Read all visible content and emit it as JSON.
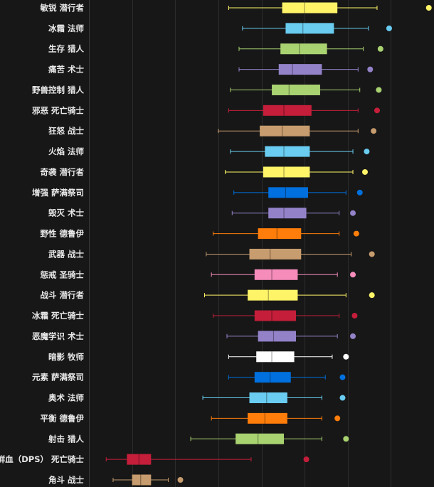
{
  "chart_data": {
    "type": "boxplot",
    "orientation": "horizontal",
    "title": "",
    "xlabel": "",
    "ylabel": "",
    "grid": true,
    "xlim": [
      0,
      100
    ],
    "rows": [
      {
        "label": "敏锐 潜行者",
        "color": "#FFF468",
        "whisker_low": 40.5,
        "q1": 56,
        "median": 62.5,
        "q3": 72,
        "whisker_high": 83.5,
        "outlier": 98.5
      },
      {
        "label": "冰霜 法师",
        "color": "#69CCF0",
        "whisker_low": 44.5,
        "q1": 57,
        "median": 62,
        "q3": 71,
        "whisker_high": 81,
        "outlier": 87
      },
      {
        "label": "生存 猎人",
        "color": "#A9D271",
        "whisker_low": 43.5,
        "q1": 55.5,
        "median": 61,
        "q3": 69,
        "whisker_high": 79.5,
        "outlier": 84.5
      },
      {
        "label": "痛苦 术士",
        "color": "#9482C9",
        "whisker_low": 43.5,
        "q1": 55,
        "median": 59,
        "q3": 67.5,
        "whisker_high": 78,
        "outlier": 81.5
      },
      {
        "label": "野兽控制 猎人",
        "color": "#A9D271",
        "whisker_low": 41,
        "q1": 53,
        "median": 58,
        "q3": 67,
        "whisker_high": 78.5,
        "outlier": 84
      },
      {
        "label": "邪恶 死亡骑士",
        "color": "#C41E3A",
        "whisker_low": 40.5,
        "q1": 50.5,
        "median": 56.5,
        "q3": 64.5,
        "whisker_high": 78,
        "outlier": 83.5
      },
      {
        "label": "狂怒 战士",
        "color": "#C79C6E",
        "whisker_low": 37.5,
        "q1": 49.5,
        "median": 56,
        "q3": 64,
        "whisker_high": 78,
        "outlier": 82.5
      },
      {
        "label": "火焰 法师",
        "color": "#69CCF0",
        "whisker_low": 41,
        "q1": 51,
        "median": 56.5,
        "q3": 64,
        "whisker_high": 76.5,
        "outlier": 80.5
      },
      {
        "label": "奇袭 潜行者",
        "color": "#FFF468",
        "whisker_low": 39.5,
        "q1": 50.5,
        "median": 56.5,
        "q3": 64,
        "whisker_high": 76.5,
        "outlier": 80
      },
      {
        "label": "增强 萨满祭司",
        "color": "#0070DE",
        "whisker_low": 42,
        "q1": 52,
        "median": 57,
        "q3": 63.5,
        "whisker_high": 74.5,
        "outlier": 78.5
      },
      {
        "label": "毁灭 术士",
        "color": "#9482C9",
        "whisker_low": 41.5,
        "q1": 52,
        "median": 56.5,
        "q3": 63,
        "whisker_high": 72.5,
        "outlier": 76.5
      },
      {
        "label": "野性 德鲁伊",
        "color": "#FF7D0A",
        "whisker_low": 36,
        "q1": 49,
        "median": 54.5,
        "q3": 61.5,
        "whisker_high": 72.5,
        "outlier": 77.5
      },
      {
        "label": "武器 战士",
        "color": "#C79C6E",
        "whisker_low": 34,
        "q1": 46.5,
        "median": 52.5,
        "q3": 61.5,
        "whisker_high": 76,
        "outlier": 82
      },
      {
        "label": "惩戒 圣骑士",
        "color": "#F58CBA",
        "whisker_low": 35.5,
        "q1": 48,
        "median": 53,
        "q3": 60.5,
        "whisker_high": 72,
        "outlier": 76.5
      },
      {
        "label": "战斗 潜行者",
        "color": "#FFF468",
        "whisker_low": 33.5,
        "q1": 46,
        "median": 52,
        "q3": 60.5,
        "whisker_high": 74.5,
        "outlier": 82
      },
      {
        "label": "冰霜 死亡骑士",
        "color": "#C41E3A",
        "whisker_low": 36,
        "q1": 48,
        "median": 53,
        "q3": 60,
        "whisker_high": 72.5,
        "outlier": 77
      },
      {
        "label": "恶魔学识 术士",
        "color": "#9482C9",
        "whisker_low": 40,
        "q1": 49,
        "median": 53.5,
        "q3": 60,
        "whisker_high": 72,
        "outlier": 76.5
      },
      {
        "label": "暗影 牧师",
        "color": "#FFFFFF",
        "whisker_low": 40.5,
        "q1": 48.5,
        "median": 53,
        "q3": 59.5,
        "whisker_high": 70.5,
        "outlier": 74.5
      },
      {
        "label": "元素 萨满祭司",
        "color": "#0070DE",
        "whisker_low": 40.5,
        "q1": 48,
        "median": 52.5,
        "q3": 58.5,
        "whisker_high": 68.5,
        "outlier": 73.5
      },
      {
        "label": "奥术 法师",
        "color": "#69CCF0",
        "whisker_low": 33,
        "q1": 46.5,
        "median": 51.5,
        "q3": 57.5,
        "whisker_high": 67.5,
        "outlier": 73.5
      },
      {
        "label": "平衡 德鲁伊",
        "color": "#FF7D0A",
        "whisker_low": 35.5,
        "q1": 46,
        "median": 51,
        "q3": 57.5,
        "whisker_high": 67.5,
        "outlier": 72
      },
      {
        "label": "射击 猎人",
        "color": "#A9D271",
        "whisker_low": 29.5,
        "q1": 42.5,
        "median": 49,
        "q3": 56.5,
        "whisker_high": 67.5,
        "outlier": 74.5
      },
      {
        "label": "鲜血（DPS） 死亡骑士",
        "color": "#C41E3A",
        "whisker_low": 5,
        "q1": 11,
        "median": 14.5,
        "q3": 18,
        "whisker_high": 47,
        "outlier": 63
      },
      {
        "label": "角斗 战士",
        "color": "#C79C6E",
        "whisker_low": 7,
        "q1": 12.5,
        "median": 15,
        "q3": 18,
        "whisker_high": 23,
        "outlier": 26.5
      }
    ]
  }
}
